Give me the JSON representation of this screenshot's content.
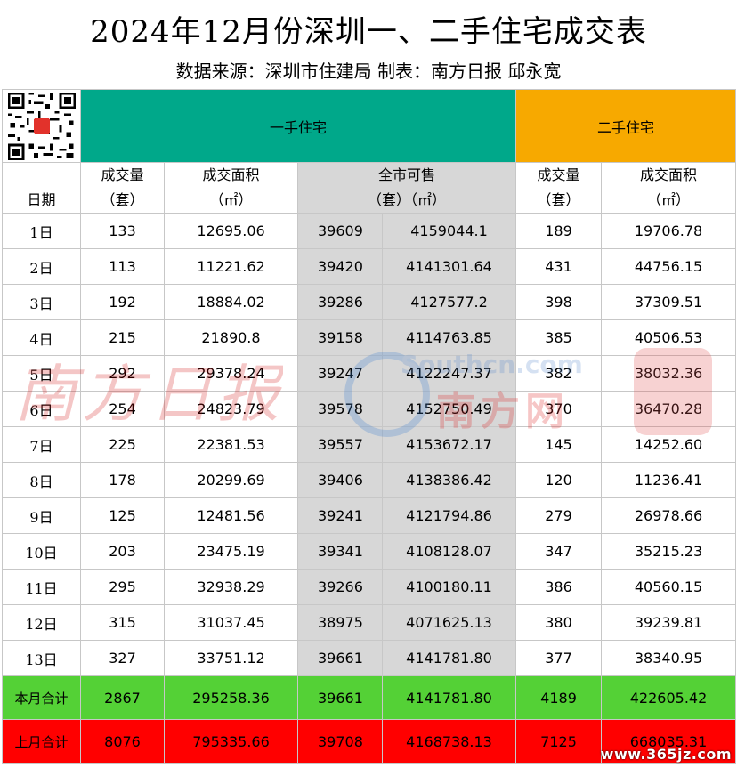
{
  "title": "2024年12月份深圳一、二手住宅成交表",
  "subtitle": "数据来源：深圳市住建局 制表：南方日报  邱永宽",
  "sections": {
    "new": "一手住宅",
    "old": "二手住宅"
  },
  "headers": {
    "date": "日期",
    "new_count": "成交量",
    "new_count_unit": "（套）",
    "new_area": "成交面积",
    "new_area_unit": "（㎡）",
    "supply": "全市可售",
    "supply_unit1": "（套）",
    "supply_unit2": "（㎡）",
    "old_count": "成交量",
    "old_count_unit": "（套）",
    "old_area": "成交面积",
    "old_area_unit": "（㎡）"
  },
  "rows": [
    [
      "1日",
      "133",
      "12695.06",
      "39609",
      "4159044.1",
      "189",
      "19706.78"
    ],
    [
      "2日",
      "113",
      "11221.62",
      "39420",
      "4141301.64",
      "431",
      "44756.15"
    ],
    [
      "3日",
      "192",
      "18884.02",
      "39286",
      "4127577.2",
      "398",
      "37309.51"
    ],
    [
      "4日",
      "215",
      "21890.8",
      "39158",
      "4114763.85",
      "385",
      "40506.53"
    ],
    [
      "5日",
      "292",
      "29378.24",
      "39247",
      "4122247.37",
      "382",
      "38032.36"
    ],
    [
      "6日",
      "254",
      "24823.79",
      "39578",
      "4152750.49",
      "370",
      "36470.28"
    ],
    [
      "7日",
      "225",
      "22381.53",
      "39557",
      "4153672.17",
      "145",
      "14252.60"
    ],
    [
      "8日",
      "178",
      "20299.69",
      "39406",
      "4138386.42",
      "120",
      "11236.41"
    ],
    [
      "9日",
      "125",
      "12481.56",
      "39241",
      "4121794.86",
      "279",
      "26978.66"
    ],
    [
      "10日",
      "203",
      "23475.19",
      "39341",
      "4108128.07",
      "347",
      "35215.23"
    ],
    [
      "11日",
      "295",
      "32938.29",
      "39266",
      "4100180.11",
      "386",
      "40560.15"
    ],
    [
      "12日",
      "315",
      "31037.45",
      "38975",
      "4071625.13",
      "380",
      "39239.81"
    ],
    [
      "13日",
      "327",
      "33751.12",
      "39661",
      "4141781.80",
      "377",
      "38340.95"
    ]
  ],
  "month_total": [
    "本月合计",
    "2867",
    "295258.36",
    "39661",
    "4141781.80",
    "4189",
    "422605.42"
  ],
  "last_month_total": [
    "上月合计",
    "8076",
    "795335.66",
    "39708",
    "4168738.13",
    "7125",
    "668035.31"
  ],
  "watermarks": {
    "left": "南方日报",
    "center_top": "Southcn.com",
    "center_bottom": "南方网",
    "corner": "www.365jz.com"
  },
  "colors": {
    "new_header": "#00a88a",
    "old_header": "#f7a900",
    "month_total": "#54d136",
    "last_month_total": "#ff0000",
    "supply_column": "#d7d7d7"
  },
  "icons": {
    "qr": "qr-code-icon"
  }
}
